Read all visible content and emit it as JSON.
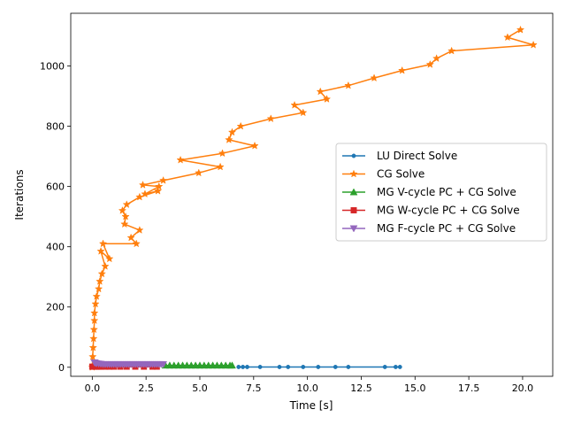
{
  "chart_data": {
    "type": "line",
    "title": "",
    "xlabel": "Time [s]",
    "ylabel": "Iterations",
    "xlim": [
      -1.0,
      21.4
    ],
    "ylim": [
      -30,
      1175
    ],
    "xticks": [
      0.0,
      2.5,
      5.0,
      7.5,
      10.0,
      12.5,
      15.0,
      17.5,
      20.0
    ],
    "xtick_labels": [
      "0.0",
      "2.5",
      "5.0",
      "7.5",
      "10.0",
      "12.5",
      "15.0",
      "17.5",
      "20.0"
    ],
    "yticks": [
      0,
      200,
      400,
      600,
      800,
      1000
    ],
    "ytick_labels": [
      "0",
      "200",
      "400",
      "600",
      "800",
      "1000"
    ],
    "grid": false,
    "legend_position": "center-right",
    "series": [
      {
        "name": "LU Direct Solve",
        "color": "#1f77b4",
        "marker": "point",
        "x": [
          6.8,
          7.0,
          7.2,
          7.8,
          8.7,
          9.1,
          9.8,
          10.5,
          11.3,
          11.9,
          13.6,
          14.1,
          14.3
        ],
        "y": [
          1,
          1,
          1,
          1,
          1,
          1,
          1,
          1,
          1,
          1,
          1,
          1,
          1
        ]
      },
      {
        "name": "CG Solve",
        "color": "#ff7f0e",
        "marker": "star",
        "x": [
          0.0,
          0.02,
          0.04,
          0.06,
          0.08,
          0.1,
          0.1,
          0.15,
          0.2,
          0.3,
          0.35,
          0.45,
          0.6,
          0.4,
          0.8,
          0.5,
          2.05,
          1.8,
          2.2,
          1.5,
          1.55,
          1.4,
          1.6,
          2.2,
          3.05,
          2.45,
          3.1,
          2.35,
          3.3,
          4.95,
          5.95,
          4.1,
          6.05,
          7.55,
          6.35,
          6.5,
          6.9,
          8.3,
          9.8,
          9.4,
          10.9,
          10.6,
          11.9,
          13.1,
          14.4,
          15.7,
          16.0,
          16.7,
          20.5,
          19.3,
          19.9
        ],
        "y": [
          0,
          35,
          65,
          95,
          125,
          155,
          180,
          210,
          235,
          260,
          285,
          310,
          335,
          385,
          360,
          410,
          410,
          430,
          455,
          475,
          500,
          520,
          540,
          565,
          585,
          575,
          600,
          605,
          620,
          645,
          665,
          688,
          710,
          735,
          755,
          780,
          800,
          825,
          845,
          870,
          890,
          915,
          935,
          960,
          985,
          1005,
          1025,
          1050,
          1070,
          1095,
          1120
        ]
      },
      {
        "name": "MG V-cycle PC + CG Solve",
        "color": "#2ca02c",
        "marker": "triangle-up",
        "x": [
          3.4,
          3.6,
          3.8,
          4.0,
          4.2,
          4.4,
          4.6,
          4.8,
          5.0,
          5.2,
          5.4,
          5.6,
          5.8,
          6.0,
          6.2,
          6.4,
          6.5
        ],
        "y": [
          6,
          6,
          6,
          6,
          6,
          6,
          6,
          6,
          6,
          6,
          6,
          6,
          6,
          6,
          6,
          6,
          6
        ]
      },
      {
        "name": "MG W-cycle PC + CG Solve",
        "color": "#d62728",
        "marker": "square",
        "x": [
          0.0,
          0.1,
          0.2,
          0.3,
          0.4,
          0.6,
          0.8,
          1.0,
          1.3,
          1.6,
          2.0,
          2.4,
          2.8,
          3.0
        ],
        "y": [
          2,
          2,
          2,
          2,
          2,
          2,
          2,
          2,
          2,
          2,
          2,
          2,
          2,
          2
        ]
      },
      {
        "name": "MG F-cycle PC + CG Solve",
        "color": "#9467bd",
        "marker": "triangle-down",
        "x": [
          0.1,
          0.15,
          0.2,
          0.3,
          0.4,
          0.5,
          0.6,
          0.7,
          0.8,
          0.9,
          1.0,
          1.1,
          1.2,
          1.3,
          1.4,
          1.5,
          1.6,
          1.7,
          1.8,
          1.9,
          2.0,
          2.1,
          2.2,
          2.3,
          2.4,
          2.5,
          2.6,
          2.7,
          2.8,
          2.9,
          3.0,
          3.1,
          3.2,
          3.3
        ],
        "y": [
          16,
          14,
          13,
          12,
          11,
          10,
          10,
          10,
          10,
          10,
          10,
          10,
          10,
          10,
          10,
          10,
          10,
          10,
          10,
          10,
          10,
          10,
          10,
          10,
          10,
          10,
          10,
          10,
          10,
          10,
          10,
          10,
          10,
          10
        ]
      }
    ]
  }
}
